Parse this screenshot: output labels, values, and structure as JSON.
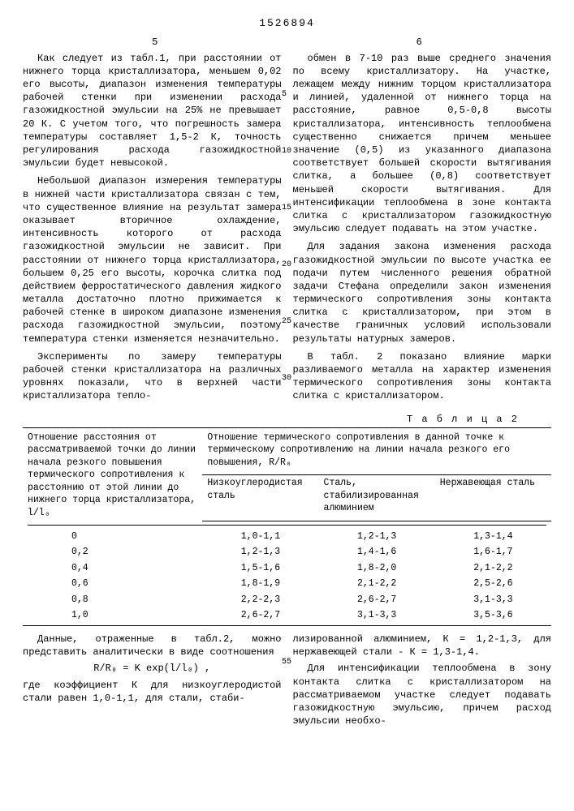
{
  "patent_number": "1526894",
  "col_left_num": "5",
  "col_right_num": "6",
  "left": {
    "p1": "Как следует из табл.1, при расстоянии от нижнего торца кристаллизатора, меньшем 0,02 его высоты, диапазон изменения температуры рабочей стенки при изменении расхода газожидкостной эмульсии на 25% не превышает 20 К. С учетом того, что погрешность замера температуры составляет 1,5-2 К, точность регулирования расхода газожидкостной эмульсии будет невысокой.",
    "p2": "Небольшой диапазон измерения температуры в нижней части кристаллизатора связан с тем, что существенное влияние на результат замера оказывает вторичное охлаждение, интенсивность которого от расхода газожидкостной эмульсии не зависит. При расстоянии от нижнего торца кристаллизатора, большем 0,25 его высоты, корочка слитка под действием ферростатического давления жидкого металла достаточно плотно прижимается к рабочей стенке в широком диапазоне изменения расхода газожидкостной эмульсии, поэтому температура стенки изменяется незначительно.",
    "p3": "Эксперименты по замеру температуры рабочей стенки кристаллизатора на различных уровнях показали, что в верхней части кристаллизатора тепло-"
  },
  "right": {
    "p1": "обмен в 7-10 раз выше среднего значения по всему кристаллизатору. На участке, лежащем между нижним торцом кристаллизатора и линией, удаленной от нижнего торца на расстояние, равное 0,5-0,8 высоты кристаллизатора, интенсивность теплообмена существенно снижается причем меньшее значение (0,5) из указанного диапазона соответствует большей скорости вытягивания слитка, а большее (0,8) соответствует меньшей скорости вытягивания. Для интенсификации теплообмена в зоне контакта слитка с кристаллизатором газожидкостную эмульсию следует подавать на этом участке.",
    "p2": "Для задания закона изменения расхода газожидкостной эмульсии по высоте участка ее подачи путем численного решения обратной задачи Стефана определили закон изменения термического сопротивления зоны контакта слитка с кристаллизатором, при этом в качестве граничных условий использовали результаты натурных замеров.",
    "p3": "В табл. 2 показано влияние марки разливаемого металла на характер изменения термического сопротивления зоны контакта слитка с кристаллизатором."
  },
  "table": {
    "label": "Т а б л и ц а  2",
    "head_left": "Отношение расстояния от рассматриваемой точки до линии начала резкого повышения термического сопротивления к расстоянию от этой линии до нижнего торца кристаллизатора, l/l₀",
    "head_right": "Отношение термического сопротивления в данной точке к термическому сопротивлению на линии начала резкого его повышения, R/R₀",
    "sub1": "Низкоуглеродистая сталь",
    "sub2": "Сталь, стабилизированная алюминием",
    "sub3": "Нержавеющая сталь",
    "rows": [
      [
        "0",
        "1,0-1,1",
        "1,2-1,3",
        "1,3-1,4"
      ],
      [
        "0,2",
        "1,2-1,3",
        "1,4-1,6",
        "1,6-1,7"
      ],
      [
        "0,4",
        "1,5-1,6",
        "1,8-2,0",
        "2,1-2,2"
      ],
      [
        "0,6",
        "1,8-1,9",
        "2,1-2,2",
        "2,5-2,6"
      ],
      [
        "0,8",
        "2,2-2,3",
        "2,6-2,7",
        "3,1-3,3"
      ],
      [
        "1,0",
        "2,6-2,7",
        "3,1-3,3",
        "3,5-3,6"
      ]
    ]
  },
  "bottom": {
    "left_p1": "Данные, отраженные в табл.2, можно представить аналитически в виде соотношения",
    "formula": "R/R₀ = K exp(l/l₀) ,",
    "left_p2": "где коэффициент К для низкоуглеродистой стали равен 1,0-1,1, для стали, стаби-",
    "right_p1": "лизированной алюминием, К = 1,2-1,3, для нержавеющей стали - К = 1,3-1,4.",
    "right_p2": "Для интенсификации теплообмена в зону контакта слитка с кристаллизатором на рассматриваемом участке следует подавать газожидкостную эмульсию, причем расход эмульсии необхо-"
  },
  "line_numbers": [
    "5",
    "10",
    "15",
    "20",
    "25",
    "30",
    "55"
  ]
}
